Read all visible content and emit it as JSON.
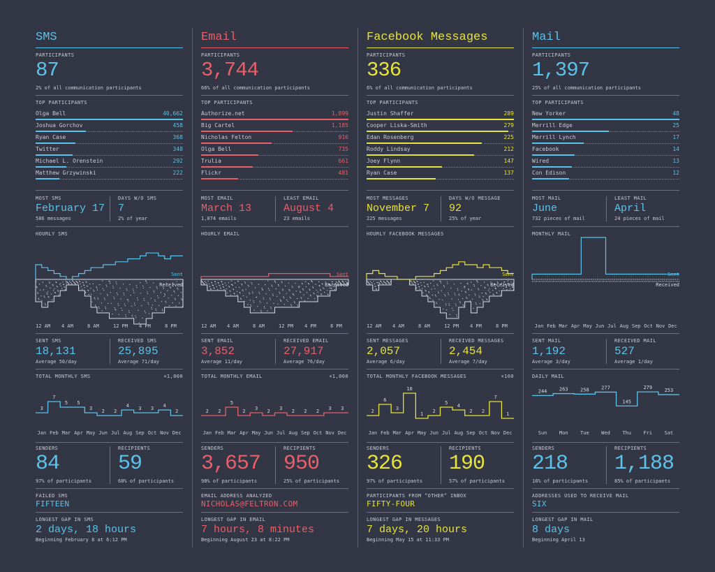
{
  "colors": {
    "sms": "#5bc3ea",
    "email": "#e8606a",
    "fb": "#e6e33a",
    "mail": "#5bc3ea",
    "bg": "#333644",
    "text": "#c9ccd4"
  },
  "columns": [
    {
      "key": "sms",
      "title": "SMS",
      "participants_label": "PARTICIPANTS",
      "participants": "87",
      "participants_note": "2% of all communication participants",
      "top_label": "TOP PARTICIPANTS",
      "top": [
        {
          "name": "Olga Bell",
          "value": "40,662",
          "pct": 1.0
        },
        {
          "name": "Joshua Gorchov",
          "value": "458",
          "pct": 0.34
        },
        {
          "name": "Ryan Case",
          "value": "368",
          "pct": 0.27
        },
        {
          "name": "Twitter",
          "value": "348",
          "pct": 0.25
        },
        {
          "name": "Michael L. Orenstein",
          "value": "292",
          "pct": 0.21
        },
        {
          "name": "Matthew Grzywinski",
          "value": "222",
          "pct": 0.16
        }
      ],
      "stat_a_label": "MOST SMS",
      "stat_a": "February 17",
      "stat_a_note": "586 messages",
      "stat_b_label": "DAYS W/O SMS",
      "stat_b": "7",
      "stat_b_note": "2% of year",
      "hourly_label": "HOURLY SMS",
      "sent_label": "Sent",
      "received_label": "Received",
      "hour_ticks": [
        "12 AM",
        "4 AM",
        "8 AM",
        "12 PM",
        "4 PM",
        "8 PM"
      ],
      "sent_label2": "SENT SMS",
      "sent": "18,131",
      "sent_note": "Average 50/day",
      "recv_label2": "RECEIVED SMS",
      "recv": "25,895",
      "recv_note": "Average 71/day",
      "monthly_label": "TOTAL MONTHLY SMS",
      "monthly_unit": "×1,000",
      "monthly_ticks": [
        "Jan",
        "Feb",
        "Mar",
        "Apr",
        "May",
        "Jun",
        "Jul",
        "Aug",
        "Sep",
        "Oct",
        "Nov",
        "Dec"
      ],
      "monthly_values": [
        "3",
        "7",
        "5",
        "5",
        "3",
        "2",
        "2",
        "4",
        "3",
        "3",
        "4",
        "2"
      ],
      "senders_label": "SENDERS",
      "senders": "84",
      "senders_note": "97% of participants",
      "recipients_label": "RECIPIENTS",
      "recipients": "59",
      "recipients_note": "68% of participants",
      "extra_label": "FAILED SMS",
      "extra_value": "FIFTEEN",
      "gap_label": "LONGEST GAP IN SMS",
      "gap": "2 days, 18 hours",
      "gap_note": "Beginning February 8 at 6:12 PM"
    },
    {
      "key": "email",
      "title": "Email",
      "participants_label": "PARTICIPANTS",
      "participants": "3,744",
      "participants_note": "66% of all communication participants",
      "top_label": "TOP PARTICIPANTS",
      "top": [
        {
          "name": "Authorize.net",
          "value": "1,899",
          "pct": 1.0
        },
        {
          "name": "Big Cartel",
          "value": "1,185",
          "pct": 0.62
        },
        {
          "name": "Nicholas Felton",
          "value": "916",
          "pct": 0.48
        },
        {
          "name": "Olga Bell",
          "value": "735",
          "pct": 0.39
        },
        {
          "name": "Trulia",
          "value": "661",
          "pct": 0.35
        },
        {
          "name": "Flickr",
          "value": "481",
          "pct": 0.25
        }
      ],
      "stat_a_label": "MOST EMAIL",
      "stat_a": "March 13",
      "stat_a_note": "1,074 emails",
      "stat_b_label": "LEAST EMAIL",
      "stat_b": "August 4",
      "stat_b_note": "23 emails",
      "hourly_label": "HOURLY EMAIL",
      "sent_label": "Sent",
      "received_label": "Received",
      "hour_ticks": [
        "12 AM",
        "4 AM",
        "8 AM",
        "12 PM",
        "4 PM",
        "8 PM"
      ],
      "sent_label2": "SENT EMAIL",
      "sent": "3,852",
      "sent_note": "Average 11/day",
      "recv_label2": "RECEIVED EMAIL",
      "recv": "27,917",
      "recv_note": "Average 76/day",
      "monthly_label": "TOTAL MONTHLY EMAIL",
      "monthly_unit": "×1,000",
      "monthly_ticks": [
        "Jan",
        "Feb",
        "Mar",
        "Apr",
        "May",
        "Jun",
        "Jul",
        "Aug",
        "Sep",
        "Oct",
        "Nov",
        "Dec"
      ],
      "monthly_values": [
        "2",
        "2",
        "5",
        "2",
        "3",
        "2",
        "3",
        "2",
        "2",
        "2",
        "3",
        "3"
      ],
      "senders_label": "SENDERS",
      "senders": "3,657",
      "senders_note": "98% of participants",
      "recipients_label": "RECIPIENTS",
      "recipients": "950",
      "recipients_note": "25% of participants",
      "extra_label": "EMAIL ADDRESS ANALYZED",
      "extra_value": "NICHOLAS@FELTRON.COM",
      "gap_label": "LONGEST GAP IN EMAIL",
      "gap": "7 hours, 8 minutes",
      "gap_note": "Beginning August 23 at 8:22 PM"
    },
    {
      "key": "fb",
      "title": "Facebook Messages",
      "participants_label": "PARTICIPANTS",
      "participants": "336",
      "participants_note": "6% of all communication participants",
      "top_label": "TOP PARTICIPANTS",
      "top": [
        {
          "name": "Justin Shaffer",
          "value": "289",
          "pct": 1.0
        },
        {
          "name": "Cooper Liska-Smith",
          "value": "279",
          "pct": 0.96
        },
        {
          "name": "Edan Rosenberg",
          "value": "225",
          "pct": 0.78
        },
        {
          "name": "Roddy Lindsay",
          "value": "212",
          "pct": 0.73
        },
        {
          "name": "Joey Flynn",
          "value": "147",
          "pct": 0.51
        },
        {
          "name": "Ryan Case",
          "value": "137",
          "pct": 0.47
        }
      ],
      "stat_a_label": "MOST MESSAGES",
      "stat_a": "November 7",
      "stat_a_note": "225 messages",
      "stat_b_label": "DAYS W/O MESSAGE",
      "stat_b": "92",
      "stat_b_note": "25% of year",
      "hourly_label": "HOURLY FACEBOOK MESSAGES",
      "sent_label": "Sent",
      "received_label": "Received",
      "hour_ticks": [
        "12 AM",
        "4 AM",
        "8 AM",
        "12 PM",
        "4 PM",
        "8 PM"
      ],
      "sent_label2": "SENT MESSAGES",
      "sent": "2,057",
      "sent_note": "Average 6/day",
      "recv_label2": "RECEIVED MESSAGES",
      "recv": "2,454",
      "recv_note": "Average 7/day",
      "monthly_label": "TOTAL MONTHLY FACEBOOK MESSAGES",
      "monthly_unit": "×100",
      "monthly_ticks": [
        "Jan",
        "Feb",
        "Mar",
        "Apr",
        "May",
        "Jun",
        "Jul",
        "Aug",
        "Sep",
        "Oct",
        "Nov",
        "Dec"
      ],
      "monthly_values": [
        "2",
        "6",
        "3",
        "10",
        "1",
        "2",
        "5",
        "4",
        "2",
        "2",
        "7",
        "1"
      ],
      "senders_label": "SENDERS",
      "senders": "326",
      "senders_note": "97% of participants",
      "recipients_label": "RECIPIENTS",
      "recipients": "190",
      "recipients_note": "57% of participants",
      "extra_label": "PARTICIPANTS FROM “OTHER” INBOX",
      "extra_value": "FIFTY-FOUR",
      "gap_label": "LONGEST GAP IN MESSAGES",
      "gap": "7 days, 20 hours",
      "gap_note": "Beginning May 15 at 11:33 PM"
    },
    {
      "key": "mail",
      "title": "Mail",
      "participants_label": "PARTICIPANTS",
      "participants": "1,397",
      "participants_note": "25% of all communication participants",
      "top_label": "TOP PARTICIPANTS",
      "top": [
        {
          "name": "New Yorker",
          "value": "48",
          "pct": 1.0
        },
        {
          "name": "Merrill Edge",
          "value": "25",
          "pct": 0.52
        },
        {
          "name": "Merrill Lynch",
          "value": "17",
          "pct": 0.35
        },
        {
          "name": "Facebook",
          "value": "14",
          "pct": 0.29
        },
        {
          "name": "Wired",
          "value": "13",
          "pct": 0.27
        },
        {
          "name": "Con Edison",
          "value": "12",
          "pct": 0.25
        }
      ],
      "stat_a_label": "MOST MAIL",
      "stat_a": "June",
      "stat_a_note": "732 pieces of mail",
      "stat_b_label": "LEAST MAIL",
      "stat_b": "April",
      "stat_b_note": "24 pieces of mail",
      "hourly_label": "MONTHLY MAIL",
      "sent_label": "Sent",
      "received_label": "Received",
      "hour_ticks": [
        "Jan",
        "Feb",
        "Mar",
        "Apr",
        "May",
        "Jun",
        "Jul",
        "Aug",
        "Sep",
        "Oct",
        "Nov",
        "Dec"
      ],
      "sent_label2": "SENT MAIL",
      "sent": "1,192",
      "sent_note": "Average 3/day",
      "recv_label2": "RECEIVED MAIL",
      "recv": "527",
      "recv_note": "Average 1/day",
      "monthly_label": "DAILY MAIL",
      "monthly_unit": "",
      "monthly_ticks": [
        "Sun",
        "Mon",
        "Tue",
        "Wed",
        "Thu",
        "Fri",
        "Sat"
      ],
      "monthly_values": [
        "244",
        "263",
        "258",
        "277",
        "145",
        "279",
        "253"
      ],
      "senders_label": "SENDERS",
      "senders": "218",
      "senders_note": "16% of participants",
      "recipients_label": "RECIPIENTS",
      "recipients": "1,188",
      "recipients_note": "85% of participants",
      "extra_label": "ADDRESSES USED TO RECEIVE MAIL",
      "extra_value": "SIX",
      "gap_label": "LONGEST GAP IN MAIL",
      "gap": "8 days",
      "gap_note": "Beginning April 13"
    }
  ],
  "chart_data": [
    {
      "type": "line",
      "title": "TOTAL MONTHLY SMS",
      "ylabel": "×1,000",
      "categories": [
        "Jan",
        "Feb",
        "Mar",
        "Apr",
        "May",
        "Jun",
        "Jul",
        "Aug",
        "Sep",
        "Oct",
        "Nov",
        "Dec"
      ],
      "values": [
        3,
        7,
        5,
        5,
        3,
        2,
        2,
        4,
        3,
        3,
        4,
        2
      ],
      "ylim": [
        0,
        10
      ]
    },
    {
      "type": "line",
      "title": "TOTAL MONTHLY EMAIL",
      "ylabel": "×1,000",
      "categories": [
        "Jan",
        "Feb",
        "Mar",
        "Apr",
        "May",
        "Jun",
        "Jul",
        "Aug",
        "Sep",
        "Oct",
        "Nov",
        "Dec"
      ],
      "values": [
        2,
        2,
        5,
        2,
        3,
        2,
        3,
        2,
        2,
        2,
        3,
        3
      ],
      "ylim": [
        0,
        10
      ]
    },
    {
      "type": "line",
      "title": "TOTAL MONTHLY FACEBOOK MESSAGES",
      "ylabel": "×100",
      "categories": [
        "Jan",
        "Feb",
        "Mar",
        "Apr",
        "May",
        "Jun",
        "Jul",
        "Aug",
        "Sep",
        "Oct",
        "Nov",
        "Dec"
      ],
      "values": [
        2,
        6,
        3,
        10,
        1,
        2,
        5,
        4,
        2,
        2,
        7,
        1
      ],
      "ylim": [
        0,
        10
      ]
    },
    {
      "type": "line",
      "title": "DAILY MAIL",
      "categories": [
        "Sun",
        "Mon",
        "Tue",
        "Wed",
        "Thu",
        "Fri",
        "Sat"
      ],
      "values": [
        244,
        263,
        258,
        277,
        145,
        279,
        253
      ],
      "ylim": [
        0,
        300
      ]
    },
    {
      "type": "area",
      "title": "HOURLY SMS",
      "x": [
        "12 AM",
        "1",
        "2",
        "3",
        "4 AM",
        "5",
        "6",
        "7",
        "8 AM",
        "9",
        "10",
        "11",
        "12 PM",
        "13",
        "14",
        "15",
        "4 PM",
        "17",
        "18",
        "19",
        "8 PM",
        "21",
        "22",
        "23"
      ],
      "series": [
        {
          "name": "Sent",
          "values": [
            5,
            4,
            3,
            2,
            1,
            0,
            1,
            2,
            3,
            4,
            4,
            5,
            5,
            6,
            6,
            7,
            7,
            8,
            9,
            9,
            8,
            7,
            8,
            8
          ]
        },
        {
          "name": "Received",
          "values": [
            4,
            5,
            4,
            3,
            2,
            1,
            1,
            2,
            3,
            5,
            6,
            6,
            7,
            7,
            7,
            7,
            8,
            8,
            7,
            6,
            6,
            5,
            5,
            5
          ]
        }
      ]
    },
    {
      "type": "area",
      "title": "HOURLY EMAIL",
      "x": [
        "12 AM",
        "1",
        "2",
        "3",
        "4 AM",
        "5",
        "6",
        "7",
        "8 AM",
        "9",
        "10",
        "11",
        "12 PM",
        "13",
        "14",
        "15",
        "4 PM",
        "17",
        "18",
        "19",
        "8 PM",
        "21",
        "22",
        "23"
      ],
      "series": [
        {
          "name": "Sent",
          "values": [
            1,
            1,
            1,
            1,
            1,
            1,
            1,
            1,
            1,
            1,
            1,
            2,
            2,
            2,
            2,
            2,
            2,
            2,
            2,
            2,
            2,
            1,
            1,
            1
          ]
        },
        {
          "name": "Received",
          "values": [
            1,
            2,
            2,
            2,
            3,
            3,
            4,
            5,
            6,
            6,
            6,
            6,
            5,
            5,
            5,
            5,
            4,
            4,
            4,
            3,
            3,
            2,
            1,
            1
          ]
        }
      ]
    },
    {
      "type": "area",
      "title": "HOURLY FACEBOOK MESSAGES",
      "x": [
        "12 AM",
        "1",
        "2",
        "3",
        "4 AM",
        "5",
        "6",
        "7",
        "8 AM",
        "9",
        "10",
        "11",
        "12 PM",
        "13",
        "14",
        "15",
        "4 PM",
        "17",
        "18",
        "19",
        "8 PM",
        "21",
        "22",
        "23"
      ],
      "series": [
        {
          "name": "Sent",
          "values": [
            2,
            3,
            2,
            1,
            1,
            0,
            0,
            0,
            1,
            1,
            1,
            2,
            3,
            4,
            5,
            6,
            5,
            5,
            4,
            5,
            4,
            4,
            3,
            2
          ]
        },
        {
          "name": "Received",
          "values": [
            1,
            2,
            1,
            1,
            0,
            0,
            0,
            1,
            2,
            3,
            4,
            5,
            6,
            7,
            7,
            5,
            4,
            6,
            5,
            4,
            3,
            3,
            2,
            2
          ]
        }
      ]
    },
    {
      "type": "line",
      "title": "MONTHLY MAIL",
      "x": [
        "Jan",
        "Feb",
        "Mar",
        "Apr",
        "May",
        "Jun",
        "Jul",
        "Aug",
        "Sep",
        "Oct",
        "Nov",
        "Dec"
      ],
      "series": [
        {
          "name": "Sent",
          "values": [
            1,
            1,
            1,
            1,
            8,
            8,
            1,
            1,
            1,
            1,
            1,
            1
          ]
        },
        {
          "name": "Received",
          "values": [
            1,
            1,
            1,
            1,
            1,
            1,
            1,
            1,
            1,
            1,
            1,
            1
          ]
        }
      ]
    }
  ]
}
